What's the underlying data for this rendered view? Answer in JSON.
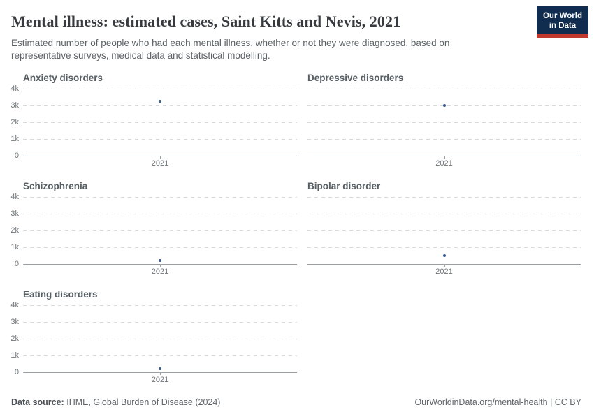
{
  "header": {
    "title": "Mental illness: estimated cases, Saint Kitts and Nevis, 2021",
    "subtitle": "Estimated number of people who had each mental illness, whether or not they were diagnosed, based on representative surveys, medical data and statistical modelling.",
    "logo": {
      "line1": "Our World",
      "line2": "in Data"
    }
  },
  "chart_data": {
    "type": "scatter",
    "x": [
      2021
    ],
    "x_tick_label": "2021",
    "ylim": [
      0,
      4000
    ],
    "yticks": [
      {
        "label": "0",
        "value": 0
      },
      {
        "label": "1k",
        "value": 1000
      },
      {
        "label": "2k",
        "value": 2000
      },
      {
        "label": "3k",
        "value": 3000
      },
      {
        "label": "4k",
        "value": 4000
      }
    ],
    "grid": "horizontal-dashed",
    "legend": "none",
    "panels": [
      {
        "title": "Anxiety disorders",
        "values": [
          3250
        ]
      },
      {
        "title": "Depressive disorders",
        "values": [
          2980
        ]
      },
      {
        "title": "Schizophrenia",
        "values": [
          200
        ]
      },
      {
        "title": "Bipolar disorder",
        "values": [
          490
        ]
      },
      {
        "title": "Eating disorders",
        "values": [
          210
        ]
      }
    ]
  },
  "footer": {
    "datasource_label": "Data source:",
    "datasource_value": "IHME, Global Burden of Disease (2024)",
    "right_text": "OurWorldinData.org/mental-health | CC BY"
  },
  "colors": {
    "point": "#3d5c8e",
    "logo_background": "#102d50",
    "logo_accent": "#c1392e",
    "gridline": "#d7dadd",
    "axis": "#9ba1a6"
  }
}
